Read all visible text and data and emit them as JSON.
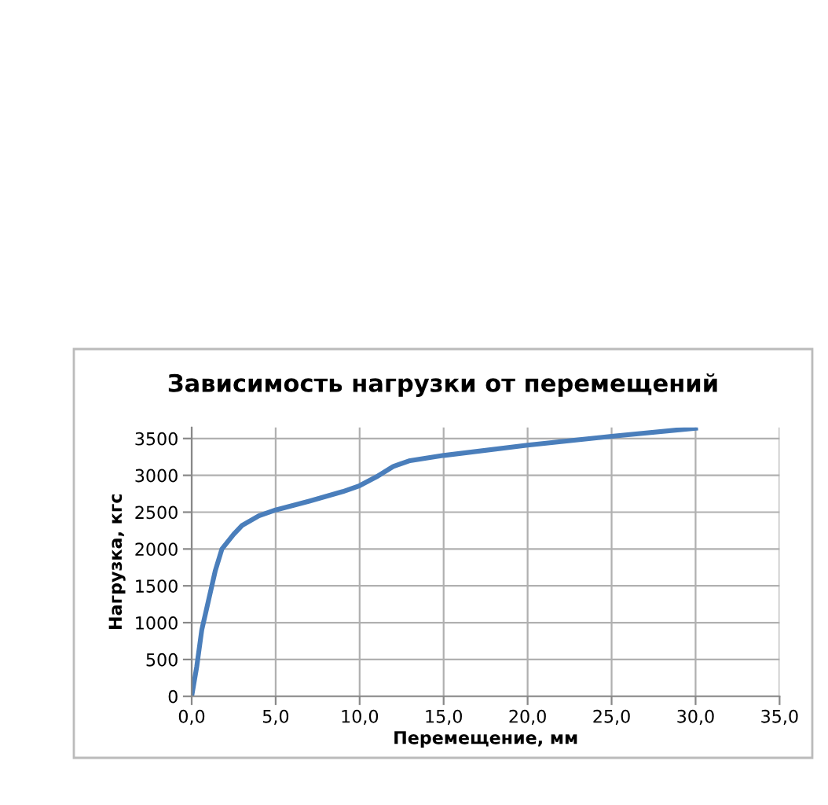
{
  "chart_data": {
    "type": "line",
    "title": "Зависимость нагрузки от перемещений",
    "xlabel": "Перемещение, мм",
    "ylabel": "Нагрузка, кгс",
    "x": [
      0,
      0.3,
      0.6,
      1.0,
      1.4,
      1.8,
      2.5,
      3,
      4,
      5,
      7,
      9,
      10,
      11,
      12,
      13,
      15,
      20,
      25,
      30
    ],
    "series": [
      {
        "color": "#4a7ebb",
        "values": [
          0,
          400,
          900,
          1300,
          1700,
          2000,
          2200,
          2320,
          2450,
          2530,
          2650,
          2780,
          2860,
          2980,
          3120,
          3200,
          3270,
          3410,
          3530,
          3640
        ]
      }
    ],
    "xlim": [
      0,
      35
    ],
    "xticks": [
      {
        "value": 0,
        "label": "0,0"
      },
      {
        "value": 5,
        "label": "5,0"
      },
      {
        "value": 10,
        "label": "10,0"
      },
      {
        "value": 15,
        "label": "15,0"
      },
      {
        "value": 20,
        "label": "20,0"
      },
      {
        "value": 25,
        "label": "25,0"
      },
      {
        "value": 30,
        "label": "30,0"
      },
      {
        "value": 35,
        "label": "35,0"
      }
    ],
    "ylim": [
      0,
      3650
    ],
    "yticks": [
      0,
      500,
      1000,
      1500,
      2000,
      2500,
      3000,
      3500
    ],
    "grid": true,
    "marker": "none",
    "line_style": "solid",
    "legend": false
  }
}
